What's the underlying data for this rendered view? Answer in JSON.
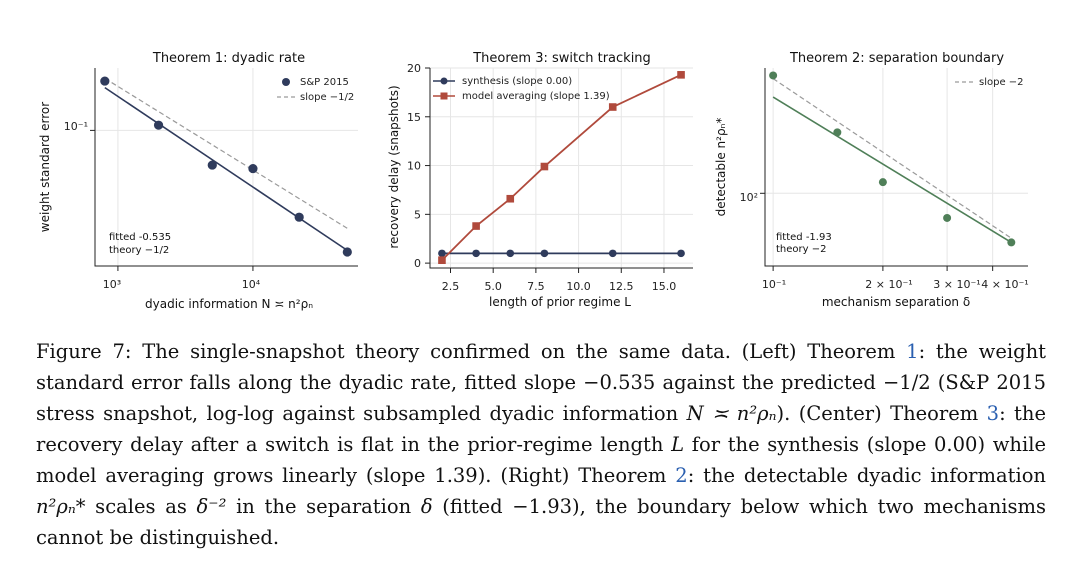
{
  "colors": {
    "navy": "#2f3b5c",
    "red": "#b04a3c",
    "green": "#4f7f58",
    "ref": "#2a5fb0"
  },
  "panels": [
    {
      "title": "Theorem 1: dyadic rate",
      "xlabel": "dyadic information N ≍ n²ρₙ",
      "ylabel": "weight standard error",
      "xticks": [
        "10³",
        "10⁴"
      ],
      "yticks": [
        "10⁻¹"
      ],
      "legend": [
        "S&P 2015",
        "slope −1/2"
      ],
      "annotations": [
        "fitted -0.535",
        "theory −1/2"
      ]
    },
    {
      "title": "Theorem 3: switch tracking",
      "xlabel": "length of prior regime L",
      "ylabel": "recovery delay (snapshots)",
      "xticks": [
        "2.5",
        "5.0",
        "7.5",
        "10.0",
        "12.5",
        "15.0"
      ],
      "yticks": [
        "0",
        "5",
        "10",
        "15",
        "20"
      ],
      "legend": [
        "synthesis (slope 0.00)",
        "model averaging (slope 1.39)"
      ]
    },
    {
      "title": "Theorem 2: separation boundary",
      "xlabel": "mechanism separation δ",
      "ylabel": "detectable n²ρₙ*",
      "xticks": [
        "10⁻¹",
        "2 × 10⁻¹",
        "3 × 10⁻¹",
        "4 × 10⁻¹"
      ],
      "yticks": [
        "10²"
      ],
      "legend": [
        "slope −2"
      ],
      "annotations": [
        "fitted -1.93",
        "theory −2"
      ]
    }
  ],
  "chart_data": [
    {
      "type": "scatter",
      "title": "Theorem 1: dyadic rate",
      "xlabel": "dyadic information N ≍ n²ρₙ",
      "ylabel": "weight standard error",
      "xscale": "log",
      "yscale": "log",
      "xlim": [
        700,
        60000
      ],
      "ylim": [
        0.036,
        0.16
      ],
      "grid": true,
      "legend_position": "top-right",
      "series": [
        {
          "name": "S&P 2015",
          "x": [
            800,
            2000,
            5000,
            10000,
            22000,
            50000
          ],
          "y": [
            0.145,
            0.104,
            0.077,
            0.075,
            0.052,
            0.04
          ]
        }
      ],
      "fit_line": {
        "slope": -0.535,
        "x": [
          800,
          50000
        ],
        "y": [
          0.138,
          0.0405
        ]
      },
      "reference_line": {
        "name": "slope −1/2",
        "x": [
          800,
          50000
        ],
        "y": [
          0.148,
          0.0478
        ]
      }
    },
    {
      "type": "line",
      "title": "Theorem 3: switch tracking",
      "xlabel": "length of prior regime L",
      "ylabel": "recovery delay (snapshots)",
      "xlim": [
        1.3,
        16.7
      ],
      "ylim": [
        -0.5,
        20
      ],
      "grid": true,
      "legend_position": "top-left",
      "x": [
        2,
        4,
        6,
        8,
        12,
        16
      ],
      "series": [
        {
          "name": "synthesis (slope 0.00)",
          "values": [
            1,
            1,
            1,
            1,
            1,
            1
          ]
        },
        {
          "name": "model averaging (slope 1.39)",
          "values": [
            0.3,
            3.8,
            6.6,
            9.9,
            16.0,
            19.3
          ]
        }
      ]
    },
    {
      "type": "scatter",
      "title": "Theorem 2: separation boundary",
      "xlabel": "mechanism separation δ",
      "ylabel": "detectable n²ρₙ*",
      "xscale": "log",
      "yscale": "log",
      "xlim": [
        0.095,
        0.5
      ],
      "ylim": [
        38,
        530
      ],
      "grid": true,
      "legend_position": "top-right",
      "series": [
        {
          "name": "",
          "x": [
            0.1,
            0.15,
            0.2,
            0.3,
            0.45
          ],
          "y": [
            480,
            225,
            116,
            72,
            52
          ]
        }
      ],
      "fit_line": {
        "slope": -1.93,
        "x": [
          0.1,
          0.45
        ],
        "y": [
          360,
          52
        ]
      },
      "reference_line": {
        "name": "slope −2",
        "x": [
          0.1,
          0.45
        ],
        "y": [
          460,
          55
        ]
      }
    }
  ],
  "caption": {
    "figure_label": "Figure 7:",
    "s1": " The single-snapshot theory confirmed on the same data. (Left) Theorem ",
    "ref1": "1",
    "s2": ": the weight standard error falls along the dyadic rate, fitted slope −0.535 against the predicted −1/2 (S&P 2015 stress snapshot, log-log against subsampled dyadic information ",
    "math1": "N ≍ n²ρₙ",
    "s3": "). (Center) Theorem ",
    "ref2": "3",
    "s4": ": the recovery delay after a switch is flat in the prior-regime length ",
    "math2": "L",
    "s5": " for the synthesis (slope 0.00) while model averaging grows linearly (slope 1.39). (Right) Theorem ",
    "ref3": "2",
    "s6": ": the detectable dyadic information ",
    "math3": "n²ρₙ*",
    "s7": " scales as ",
    "math4": "δ⁻²",
    "s8": " in the separation ",
    "math5": "δ",
    "s9": " (fitted −1.93), the boundary below which two mechanisms cannot be distinguished."
  }
}
